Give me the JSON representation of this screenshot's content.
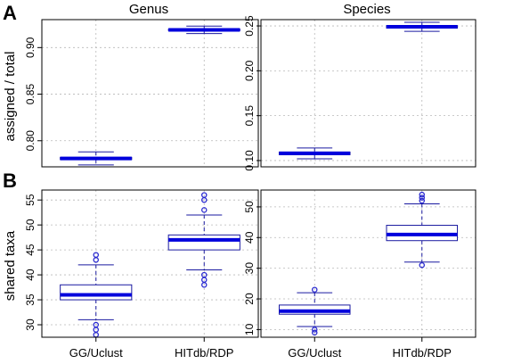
{
  "figure": {
    "panel_letters": [
      "A",
      "B"
    ],
    "column_titles": [
      "Genus",
      "Species"
    ],
    "row_ylabels": [
      "assigned / total",
      "shared taxa"
    ]
  },
  "colors": {
    "box": "#1a1aa0",
    "median": "#0000dd",
    "outlier": "#2a2ad0",
    "grid": "#b8b8b8"
  },
  "chart_data": [
    {
      "type": "box",
      "panel": "A",
      "column": "Genus",
      "categories": [
        "GG/Uclust",
        "HITdb/RDP"
      ],
      "ylabel": "assigned / total",
      "ylim": [
        0.772,
        0.93
      ],
      "yticks": [
        0.8,
        0.85,
        0.9
      ],
      "ytick_labels": [
        "0.80",
        "0.85",
        "0.90"
      ],
      "grid": true,
      "boxes": [
        {
          "category": "GG/Uclust",
          "min": 0.774,
          "q1": 0.7798,
          "median": 0.781,
          "q3": 0.7822,
          "max": 0.788,
          "outliers": []
        },
        {
          "category": "HITdb/RDP",
          "min": 0.915,
          "q1": 0.9183,
          "median": 0.919,
          "q3": 0.9197,
          "max": 0.923,
          "outliers": []
        }
      ]
    },
    {
      "type": "box",
      "panel": "A",
      "column": "Species",
      "categories": [
        "GG/Uclust",
        "HITdb/RDP"
      ],
      "ylabel": "",
      "ylim": [
        0.093,
        0.257
      ],
      "yticks": [
        0.1,
        0.15,
        0.2,
        0.25
      ],
      "ytick_labels": [
        "0.10",
        "0.15",
        "0.20",
        "0.25"
      ],
      "grid": true,
      "boxes": [
        {
          "category": "GG/Uclust",
          "min": 0.102,
          "q1": 0.1065,
          "median": 0.108,
          "q3": 0.1095,
          "max": 0.114,
          "outliers": []
        },
        {
          "category": "HITdb/RDP",
          "min": 0.244,
          "q1": 0.2475,
          "median": 0.249,
          "q3": 0.2503,
          "max": 0.254,
          "outliers": []
        }
      ]
    },
    {
      "type": "box",
      "panel": "B",
      "column": "Genus",
      "categories": [
        "GG/Uclust",
        "HITdb/RDP"
      ],
      "ylabel": "shared taxa",
      "ylim": [
        27.5,
        57
      ],
      "yticks": [
        30,
        35,
        40,
        45,
        50,
        55
      ],
      "ytick_labels": [
        "30",
        "35",
        "40",
        "45",
        "50",
        "55"
      ],
      "grid": true,
      "boxes": [
        {
          "category": "GG/Uclust",
          "min": 31,
          "q1": 35,
          "median": 36,
          "q3": 38,
          "max": 42,
          "outliers": [
            28,
            29,
            30,
            43,
            44
          ]
        },
        {
          "category": "HITdb/RDP",
          "min": 41,
          "q1": 45,
          "median": 47,
          "q3": 48,
          "max": 52,
          "outliers": [
            38,
            39,
            40,
            53,
            55,
            56
          ]
        }
      ]
    },
    {
      "type": "box",
      "panel": "B",
      "column": "Species",
      "categories": [
        "GG/Uclust",
        "HITdb/RDP"
      ],
      "ylabel": "",
      "ylim": [
        7.5,
        55.5
      ],
      "yticks": [
        10,
        20,
        30,
        40,
        50
      ],
      "ytick_labels": [
        "10",
        "20",
        "30",
        "40",
        "50"
      ],
      "grid": true,
      "boxes": [
        {
          "category": "GG/Uclust",
          "min": 11,
          "q1": 15,
          "median": 16,
          "q3": 18,
          "max": 22,
          "outliers": [
            9,
            10,
            23
          ]
        },
        {
          "category": "HITdb/RDP",
          "min": 32,
          "q1": 39,
          "median": 41,
          "q3": 44,
          "max": 51,
          "outliers": [
            31,
            52,
            53,
            54
          ]
        }
      ]
    }
  ]
}
